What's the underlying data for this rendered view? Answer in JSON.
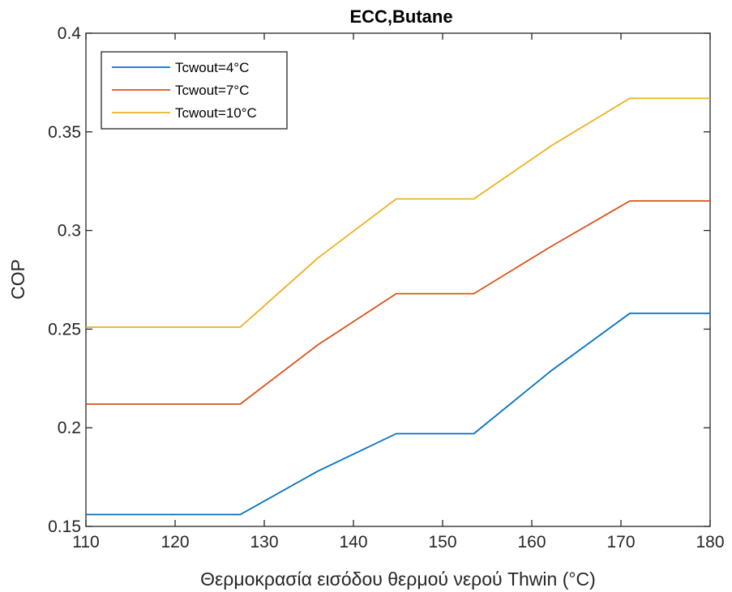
{
  "chart_data": {
    "type": "line",
    "title": "ECC,Butane",
    "xlabel": "Θερμοκρασία εισόδου θερμού νερού Thwin (°C)",
    "ylabel": "COP",
    "xlim": [
      110,
      180
    ],
    "ylim": [
      0.15,
      0.4
    ],
    "xticks": [
      110,
      120,
      130,
      140,
      150,
      160,
      170,
      180
    ],
    "yticks": [
      0.15,
      0.2,
      0.25,
      0.3,
      0.35,
      0.4
    ],
    "xtick_labels": [
      "110",
      "120",
      "130",
      "140",
      "150",
      "160",
      "170",
      "180"
    ],
    "ytick_labels": [
      "0.15",
      "0.2",
      "0.25",
      "0.3",
      "0.35",
      "0.4"
    ],
    "grid": false,
    "legend_position": "top-left",
    "x": [
      110,
      127.3,
      136,
      144.8,
      153.5,
      162.2,
      171,
      180
    ],
    "series": [
      {
        "name": "Tcwout=4°C",
        "color": "#0072BD",
        "values": [
          0.156,
          0.156,
          0.178,
          0.197,
          0.197,
          0.229,
          0.258,
          0.258
        ]
      },
      {
        "name": "Tcwout=7°C",
        "color": "#D95319",
        "values": [
          0.212,
          0.212,
          0.242,
          0.268,
          0.268,
          0.292,
          0.315,
          0.315
        ]
      },
      {
        "name": "Tcwout=10°C",
        "color": "#EDB120",
        "values": [
          0.251,
          0.251,
          0.286,
          0.316,
          0.316,
          0.343,
          0.367,
          0.367
        ]
      }
    ]
  }
}
